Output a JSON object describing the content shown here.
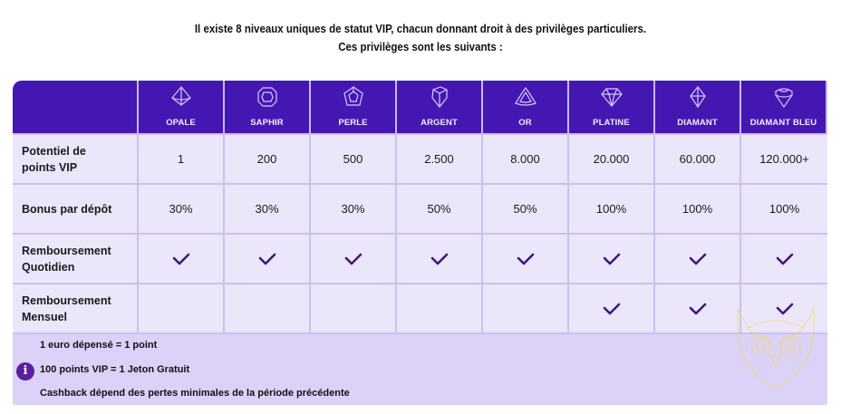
{
  "intro": {
    "line1": "Il existe 8 niveaux uniques de statut VIP, chacun donnant droit à des privilèges particuliers.",
    "line2": "Ces privilèges sont les suivants :"
  },
  "colors": {
    "header_bg": "#4417b3",
    "cell_bg": "#ece6fb",
    "footer_bg": "#dcd1f6",
    "check": "#3a1a7a"
  },
  "tiers": [
    {
      "name": "OPALE",
      "icon": "opal-gem-icon"
    },
    {
      "name": "SAPHIR",
      "icon": "sapphire-gem-icon"
    },
    {
      "name": "PERLE",
      "icon": "pearl-gem-icon"
    },
    {
      "name": "ARGENT",
      "icon": "silver-gem-icon"
    },
    {
      "name": "OR",
      "icon": "gold-gem-icon"
    },
    {
      "name": "PLATINE",
      "icon": "platinum-gem-icon"
    },
    {
      "name": "DIAMANT",
      "icon": "diamond-gem-icon"
    },
    {
      "name": "DIAMANT BLEU",
      "icon": "blue-diamond-gem-icon"
    }
  ],
  "rows": [
    {
      "label": "Potentiel de points VIP",
      "values": [
        "1",
        "200",
        "500",
        "2.500",
        "8.000",
        "20.000",
        "60.000",
        "120.000+"
      ]
    },
    {
      "label": "Bonus par dépôt",
      "values": [
        "30%",
        "30%",
        "30%",
        "50%",
        "50%",
        "100%",
        "100%",
        "100%"
      ]
    },
    {
      "label": "Remboursement Quotidien",
      "checks": [
        true,
        true,
        true,
        true,
        true,
        true,
        true,
        true
      ]
    },
    {
      "label": "Remboursement Mensuel",
      "checks": [
        false,
        false,
        false,
        false,
        false,
        true,
        true,
        true
      ]
    }
  ],
  "footer": {
    "line1": "1 euro dépensé = 1 point",
    "line2": "100 points VIP = 1 Jeton Gratuit",
    "line3": "Cashback dépend des pertes minimales de la période précédente",
    "info_icon": "i"
  }
}
